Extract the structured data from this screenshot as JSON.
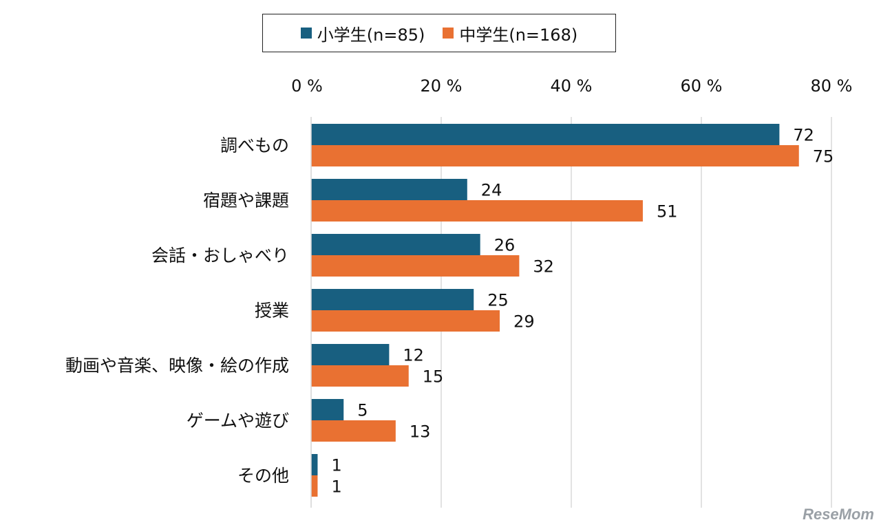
{
  "chart_data": {
    "type": "bar",
    "orientation": "horizontal",
    "categories": [
      "調べもの",
      "宿題や課題",
      "会話・おしゃべり",
      "授業",
      "動画や音楽、映像・絵の作成",
      "ゲームや遊び",
      "その他"
    ],
    "series": [
      {
        "name": "小学生(n=85)",
        "color": "#185f80",
        "values": [
          72,
          24,
          26,
          25,
          12,
          5,
          1
        ]
      },
      {
        "name": "中学生(n=168)",
        "color": "#e97132",
        "values": [
          75,
          51,
          32,
          29,
          15,
          13,
          1
        ]
      }
    ],
    "xlim": [
      0,
      80
    ],
    "xticks": [
      0,
      20,
      40,
      60,
      80
    ],
    "tick_labels": [
      "0 %",
      "20 %",
      "40 %",
      "60 %",
      "80 %"
    ],
    "grid": true,
    "legend_position": "top",
    "data_labels": true
  },
  "watermark": "ReseMom"
}
